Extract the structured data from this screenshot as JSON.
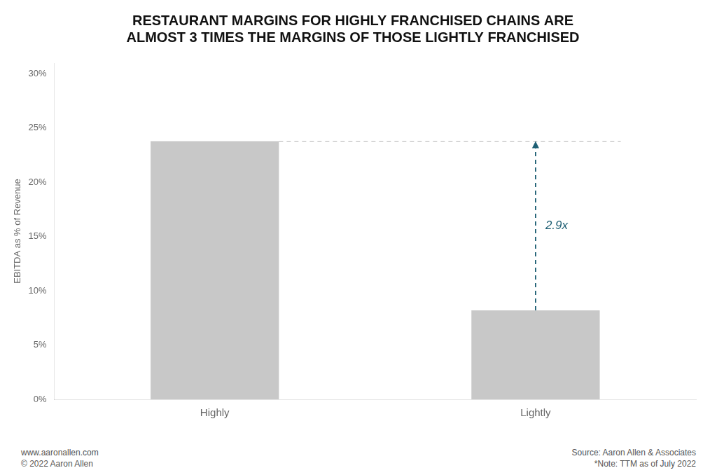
{
  "chart_data": {
    "type": "bar",
    "title": [
      "RESTAURANT MARGINS FOR HIGHLY FRANCHISED CHAINS ARE",
      "ALMOST 3 TIMES THE MARGINS OF THOSE LIGHTLY FRANCHISED"
    ],
    "ylabel": "EBITDA as % of Revenue",
    "categories": [
      "Highly",
      "Lightly"
    ],
    "values": [
      0.238,
      0.082
    ],
    "color": "#c8c8c8",
    "ylim": [
      0,
      0.31
    ],
    "yticks": [
      {
        "value": 0.0,
        "label": "0%"
      },
      {
        "value": 0.05,
        "label": "5%"
      },
      {
        "value": 0.1,
        "label": "10%"
      },
      {
        "value": 0.15,
        "label": "15%"
      },
      {
        "value": 0.2,
        "label": "20%"
      },
      {
        "value": 0.25,
        "label": "25%"
      },
      {
        "value": 0.3,
        "label": "30%"
      }
    ],
    "grid": false,
    "legend": false,
    "annotations": [
      {
        "text": "2.9x",
        "color": "#1e5f74"
      }
    ],
    "footnotes_left": [
      "www.aaronallen.com",
      "© 2022 Aaron Allen"
    ],
    "footnotes_right": [
      "Source: Aaron Allen & Associates",
      "*Note: TTM as of July 2022"
    ]
  }
}
